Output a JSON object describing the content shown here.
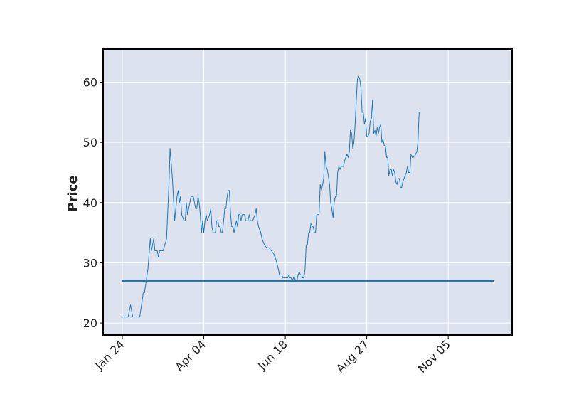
{
  "chart_data": {
    "type": "line",
    "title": "",
    "xlabel": "",
    "ylabel": "Price",
    "x_tick_labels": [
      "Jan 24",
      "Apr 04",
      "Jun 18",
      "Aug 27",
      "Nov 05"
    ],
    "y_ticks": [
      20,
      30,
      40,
      50,
      60
    ],
    "ylim": [
      18,
      65.5
    ],
    "grid": true,
    "legend": "none",
    "colors": {
      "plot_background": "#dde2ef",
      "grid": "#ffffff",
      "frame": "#000000",
      "price_line": "#1f77b4",
      "reference_line": "#1f77b4"
    },
    "x_index_range": [
      0,
      319
    ],
    "x_tick_index": [
      0,
      70,
      140,
      210,
      280
    ],
    "series": [
      {
        "values": [
          [
            0,
            21
          ],
          [
            5,
            21
          ],
          [
            7,
            23
          ],
          [
            9,
            21
          ],
          [
            11,
            21
          ],
          [
            15,
            21
          ],
          [
            18,
            25
          ],
          [
            19,
            25
          ],
          [
            22,
            29
          ],
          [
            24,
            34
          ],
          [
            25,
            32
          ],
          [
            27,
            34
          ],
          [
            28,
            32
          ],
          [
            30,
            32
          ],
          [
            31,
            31
          ],
          [
            32,
            32
          ],
          [
            33,
            32
          ],
          [
            35,
            32
          ],
          [
            38,
            34
          ],
          [
            40,
            43
          ],
          [
            41,
            49
          ],
          [
            43,
            44
          ],
          [
            45,
            37
          ],
          [
            47,
            41
          ],
          [
            48,
            42
          ],
          [
            49,
            40
          ],
          [
            50,
            41
          ],
          [
            51,
            38
          ],
          [
            53,
            37
          ],
          [
            54,
            37
          ],
          [
            55,
            40
          ],
          [
            56,
            38
          ],
          [
            58,
            40
          ],
          [
            59,
            41
          ],
          [
            60,
            41
          ],
          [
            61,
            41
          ],
          [
            63,
            39
          ],
          [
            64,
            39
          ],
          [
            65,
            41
          ],
          [
            66,
            40
          ],
          [
            67,
            38
          ],
          [
            68,
            35
          ],
          [
            69,
            37
          ],
          [
            70,
            35
          ],
          [
            71,
            37
          ],
          [
            72,
            38
          ],
          [
            73,
            37
          ],
          [
            75,
            38
          ],
          [
            76,
            39
          ],
          [
            77,
            36
          ],
          [
            78,
            35
          ],
          [
            79,
            35
          ],
          [
            80,
            35
          ],
          [
            81,
            37
          ],
          [
            82,
            37
          ],
          [
            83,
            36
          ],
          [
            84,
            36
          ],
          [
            85,
            35
          ],
          [
            86,
            35
          ],
          [
            87,
            37
          ],
          [
            88,
            39
          ],
          [
            89,
            39
          ],
          [
            90,
            41
          ],
          [
            91,
            42
          ],
          [
            92,
            42
          ],
          [
            93,
            38
          ],
          [
            94,
            36
          ],
          [
            95,
            36
          ],
          [
            96,
            35
          ],
          [
            97,
            36
          ],
          [
            98,
            37
          ],
          [
            99,
            36
          ],
          [
            100,
            38
          ],
          [
            101,
            38
          ],
          [
            102,
            37
          ],
          [
            103,
            38
          ],
          [
            104,
            38
          ],
          [
            105,
            38
          ],
          [
            106,
            37
          ],
          [
            107,
            37
          ],
          [
            108,
            37
          ],
          [
            109,
            38
          ],
          [
            110,
            37
          ],
          [
            112,
            37
          ],
          [
            114,
            38
          ],
          [
            115,
            39
          ],
          [
            116,
            37
          ],
          [
            117,
            36
          ],
          [
            119,
            35
          ],
          [
            120,
            34
          ],
          [
            122,
            33
          ],
          [
            124,
            32.5
          ],
          [
            126,
            32.5
          ],
          [
            128,
            32
          ],
          [
            130,
            31.5
          ],
          [
            132,
            30.5
          ],
          [
            134,
            29
          ],
          [
            135,
            28
          ],
          [
            136,
            28
          ],
          [
            137,
            28
          ],
          [
            138,
            27.5
          ],
          [
            140,
            27.5
          ],
          [
            142,
            27.5
          ],
          [
            143,
            28
          ],
          [
            144,
            27.5
          ],
          [
            145,
            27.5
          ],
          [
            146,
            27
          ],
          [
            147,
            27.5
          ],
          [
            148,
            27.5
          ],
          [
            149,
            27
          ],
          [
            150,
            27
          ],
          [
            151,
            28
          ],
          [
            152,
            28.5
          ],
          [
            153,
            28
          ],
          [
            154,
            28
          ],
          [
            155,
            27.5
          ],
          [
            156,
            27.5
          ],
          [
            157,
            29
          ],
          [
            158,
            33
          ],
          [
            159,
            33
          ],
          [
            160,
            35
          ],
          [
            161,
            35
          ],
          [
            162,
            36.5
          ],
          [
            163,
            36
          ],
          [
            164,
            36
          ],
          [
            165,
            35
          ],
          [
            166,
            35
          ],
          [
            167,
            38
          ],
          [
            168,
            38
          ],
          [
            169,
            38
          ],
          [
            170,
            43
          ],
          [
            171,
            42
          ],
          [
            172,
            43
          ],
          [
            173,
            44
          ],
          [
            174,
            48.5
          ],
          [
            175,
            46
          ],
          [
            176,
            45.5
          ],
          [
            177,
            44.5
          ],
          [
            178,
            43
          ],
          [
            179,
            40
          ],
          [
            180,
            39
          ],
          [
            181,
            37.5
          ],
          [
            182,
            40
          ],
          [
            183,
            41
          ],
          [
            184,
            41
          ],
          [
            185,
            45
          ],
          [
            186,
            46
          ],
          [
            187,
            45.5
          ],
          [
            188,
            46
          ],
          [
            189,
            46
          ],
          [
            190,
            46
          ],
          [
            191,
            47
          ],
          [
            192,
            47.5
          ],
          [
            193,
            48
          ],
          [
            194,
            47.5
          ],
          [
            195,
            48.5
          ],
          [
            196,
            52
          ],
          [
            197,
            51.5
          ],
          [
            198,
            49
          ],
          [
            199,
            50
          ],
          [
            200,
            53
          ],
          [
            201,
            57
          ],
          [
            202,
            60.5
          ],
          [
            203,
            61
          ],
          [
            204,
            60.5
          ],
          [
            205,
            59
          ],
          [
            206,
            55
          ],
          [
            207,
            55
          ],
          [
            208,
            53
          ],
          [
            209,
            54
          ],
          [
            210,
            51
          ],
          [
            211,
            51
          ],
          [
            212,
            51.5
          ],
          [
            213,
            53.5
          ],
          [
            214,
            54
          ],
          [
            215,
            57
          ],
          [
            216,
            51.5
          ],
          [
            217,
            52
          ],
          [
            218,
            51
          ],
          [
            219,
            52.5
          ],
          [
            220,
            51.5
          ],
          [
            221,
            52.5
          ],
          [
            222,
            53
          ],
          [
            223,
            50
          ],
          [
            224,
            50.5
          ],
          [
            225,
            49.5
          ],
          [
            226,
            49.5
          ],
          [
            227,
            47.5
          ],
          [
            228,
            47.5
          ],
          [
            229,
            44.5
          ],
          [
            230,
            45.5
          ],
          [
            231,
            45.5
          ],
          [
            232,
            44.5
          ],
          [
            233,
            45.5
          ],
          [
            234,
            45
          ],
          [
            235,
            43.5
          ],
          [
            236,
            43
          ],
          [
            237,
            44
          ],
          [
            238,
            44
          ],
          [
            239,
            42.5
          ],
          [
            240,
            42.5
          ],
          [
            241,
            43.5
          ],
          [
            242,
            44
          ],
          [
            243,
            44.5
          ],
          [
            244,
            45
          ],
          [
            245,
            46
          ],
          [
            246,
            45
          ],
          [
            247,
            45
          ],
          [
            248,
            48
          ],
          [
            249,
            47.5
          ],
          [
            250,
            47.5
          ],
          [
            252,
            48
          ],
          [
            253,
            48.5
          ],
          [
            254,
            50
          ],
          [
            255,
            55
          ]
        ]
      },
      {
        "values": [
          [
            0,
            27
          ],
          [
            319,
            27
          ]
        ]
      }
    ]
  }
}
